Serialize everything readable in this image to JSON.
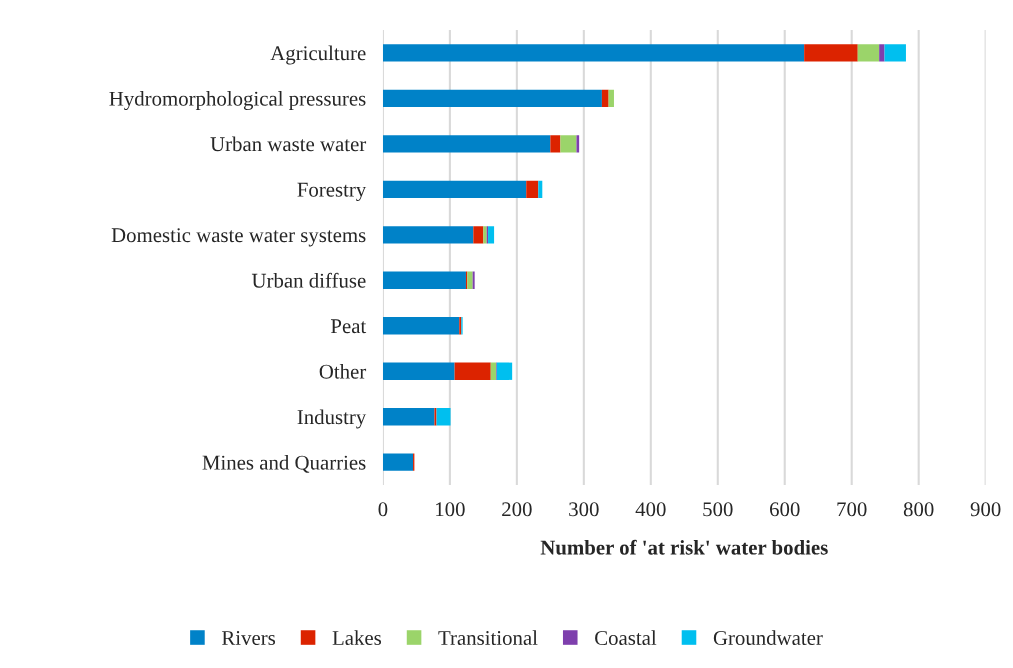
{
  "chart_data": {
    "type": "bar",
    "orientation": "horizontal",
    "stacked": true,
    "xlabel": "Number of 'at risk' water bodies",
    "categories": [
      "Agriculture",
      "Hydromorphological pressures",
      "Urban waste water",
      "Forestry",
      "Domestic waste water systems",
      "Urban diffuse",
      "Peat",
      "Other",
      "Industry",
      "Mines and Quarries"
    ],
    "series": [
      {
        "name": "Rivers",
        "color": "#0082c8",
        "values": [
          629,
          327,
          250,
          214,
          135,
          124,
          114,
          107,
          77,
          45
        ]
      },
      {
        "name": "Lakes",
        "color": "#dc2300",
        "values": [
          80,
          10,
          15,
          18,
          15,
          2,
          3,
          54,
          3,
          2
        ]
      },
      {
        "name": "Transitional",
        "color": "#9bd46a",
        "values": [
          32,
          8,
          24,
          0,
          5,
          8,
          0,
          8,
          0,
          0
        ]
      },
      {
        "name": "Coastal",
        "color": "#7e3fad",
        "values": [
          8,
          0,
          4,
          0,
          2,
          3,
          0,
          1,
          0,
          0
        ]
      },
      {
        "name": "Groundwater",
        "color": "#00bfef",
        "values": [
          32,
          0,
          0,
          6,
          9,
          0,
          2,
          23,
          21,
          0
        ]
      }
    ],
    "xlim": [
      0,
      900
    ],
    "xticks": [
      0,
      100,
      200,
      300,
      400,
      500,
      600,
      700,
      800,
      900
    ],
    "grid": "x",
    "legend": "bottom"
  }
}
